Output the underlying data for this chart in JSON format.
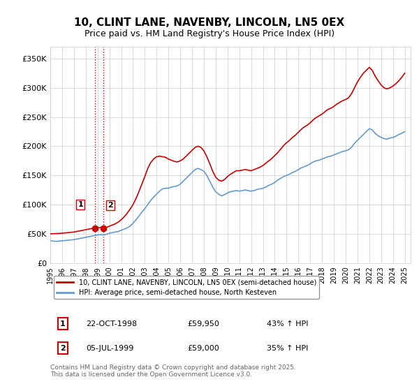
{
  "title": "10, CLINT LANE, NAVENBY, LINCOLN, LN5 0EX",
  "subtitle": "Price paid vs. HM Land Registry's House Price Index (HPI)",
  "title_fontsize": 11,
  "subtitle_fontsize": 9,
  "background_color": "#ffffff",
  "grid_color": "#cccccc",
  "ylabel_ticks": [
    "£0",
    "£50K",
    "£100K",
    "£150K",
    "£200K",
    "£250K",
    "£300K",
    "£350K"
  ],
  "ytick_values": [
    0,
    50000,
    100000,
    150000,
    200000,
    250000,
    300000,
    350000
  ],
  "ylim": [
    0,
    370000
  ],
  "xlim_start": 1995.0,
  "xlim_end": 2025.5,
  "xtick_years": [
    1995,
    1996,
    1997,
    1998,
    1999,
    2000,
    2001,
    2002,
    2003,
    2004,
    2005,
    2006,
    2007,
    2008,
    2009,
    2010,
    2011,
    2012,
    2013,
    2014,
    2015,
    2016,
    2017,
    2018,
    2019,
    2020,
    2021,
    2022,
    2023,
    2024,
    2025
  ],
  "red_line_color": "#cc0000",
  "blue_line_color": "#6699cc",
  "marker_color": "#cc0000",
  "vline_color": "#cc0000",
  "sale1_x": 1998.81,
  "sale1_y": 59950,
  "sale1_label": "1",
  "sale2_x": 1999.51,
  "sale2_y": 59000,
  "sale2_label": "2",
  "legend_label_red": "10, CLINT LANE, NAVENBY, LINCOLN, LN5 0EX (semi-detached house)",
  "legend_label_blue": "HPI: Average price, semi-detached house, North Kesteven",
  "table_rows": [
    [
      "1",
      "22-OCT-1998",
      "£59,950",
      "43% ↑ HPI"
    ],
    [
      "2",
      "05-JUL-1999",
      "£59,000",
      "35% ↑ HPI"
    ]
  ],
  "footer_text": "Contains HM Land Registry data © Crown copyright and database right 2025.\nThis data is licensed under the Open Government Licence v3.0.",
  "hpi_data_x": [
    1995.0,
    1995.25,
    1995.5,
    1995.75,
    1996.0,
    1996.25,
    1996.5,
    1996.75,
    1997.0,
    1997.25,
    1997.5,
    1997.75,
    1998.0,
    1998.25,
    1998.5,
    1998.75,
    1999.0,
    1999.25,
    1999.5,
    1999.75,
    2000.0,
    2000.25,
    2000.5,
    2000.75,
    2001.0,
    2001.25,
    2001.5,
    2001.75,
    2002.0,
    2002.25,
    2002.5,
    2002.75,
    2003.0,
    2003.25,
    2003.5,
    2003.75,
    2004.0,
    2004.25,
    2004.5,
    2004.75,
    2005.0,
    2005.25,
    2005.5,
    2005.75,
    2006.0,
    2006.25,
    2006.5,
    2006.75,
    2007.0,
    2007.25,
    2007.5,
    2007.75,
    2008.0,
    2008.25,
    2008.5,
    2008.75,
    2009.0,
    2009.25,
    2009.5,
    2009.75,
    2010.0,
    2010.25,
    2010.5,
    2010.75,
    2011.0,
    2011.25,
    2011.5,
    2011.75,
    2012.0,
    2012.25,
    2012.5,
    2012.75,
    2013.0,
    2013.25,
    2013.5,
    2013.75,
    2014.0,
    2014.25,
    2014.5,
    2014.75,
    2015.0,
    2015.25,
    2015.5,
    2015.75,
    2016.0,
    2016.25,
    2016.5,
    2016.75,
    2017.0,
    2017.25,
    2017.5,
    2017.75,
    2018.0,
    2018.25,
    2018.5,
    2018.75,
    2019.0,
    2019.25,
    2019.5,
    2019.75,
    2020.0,
    2020.25,
    2020.5,
    2020.75,
    2021.0,
    2021.25,
    2021.5,
    2021.75,
    2022.0,
    2022.25,
    2022.5,
    2022.75,
    2023.0,
    2023.25,
    2023.5,
    2023.75,
    2024.0,
    2024.25,
    2024.5,
    2024.75,
    2025.0
  ],
  "hpi_data_y": [
    38000,
    37500,
    37000,
    37500,
    38000,
    38500,
    39000,
    39500,
    40000,
    41000,
    42000,
    43000,
    44000,
    45000,
    46000,
    47000,
    48000,
    48500,
    48000,
    49000,
    51000,
    52000,
    53000,
    54000,
    56000,
    58000,
    60000,
    63000,
    68000,
    74000,
    80000,
    87000,
    93000,
    100000,
    107000,
    113000,
    118000,
    123000,
    127000,
    128000,
    128000,
    130000,
    131000,
    132000,
    135000,
    140000,
    145000,
    150000,
    155000,
    160000,
    162000,
    160000,
    157000,
    150000,
    140000,
    130000,
    122000,
    118000,
    115000,
    117000,
    120000,
    122000,
    123000,
    124000,
    123000,
    124000,
    125000,
    124000,
    123000,
    124000,
    126000,
    127000,
    128000,
    130000,
    133000,
    135000,
    138000,
    142000,
    145000,
    148000,
    150000,
    152000,
    155000,
    157000,
    160000,
    163000,
    165000,
    167000,
    170000,
    173000,
    175000,
    176000,
    178000,
    180000,
    182000,
    183000,
    185000,
    187000,
    189000,
    191000,
    192000,
    194000,
    198000,
    205000,
    210000,
    215000,
    220000,
    225000,
    230000,
    228000,
    222000,
    218000,
    215000,
    213000,
    212000,
    214000,
    215000,
    217000,
    220000,
    222000,
    225000
  ],
  "price_data_x": [
    1995.0,
    1995.25,
    1995.5,
    1995.75,
    1996.0,
    1996.25,
    1996.5,
    1996.75,
    1997.0,
    1997.25,
    1997.5,
    1997.75,
    1998.0,
    1998.25,
    1998.5,
    1998.75,
    1999.0,
    1999.25,
    1999.5,
    1999.75,
    2000.0,
    2000.25,
    2000.5,
    2000.75,
    2001.0,
    2001.25,
    2001.5,
    2001.75,
    2002.0,
    2002.25,
    2002.5,
    2002.75,
    2003.0,
    2003.25,
    2003.5,
    2003.75,
    2004.0,
    2004.25,
    2004.5,
    2004.75,
    2005.0,
    2005.25,
    2005.5,
    2005.75,
    2006.0,
    2006.25,
    2006.5,
    2006.75,
    2007.0,
    2007.25,
    2007.5,
    2007.75,
    2008.0,
    2008.25,
    2008.5,
    2008.75,
    2009.0,
    2009.25,
    2009.5,
    2009.75,
    2010.0,
    2010.25,
    2010.5,
    2010.75,
    2011.0,
    2011.25,
    2011.5,
    2011.75,
    2012.0,
    2012.25,
    2012.5,
    2012.75,
    2013.0,
    2013.25,
    2013.5,
    2013.75,
    2014.0,
    2014.25,
    2014.5,
    2014.75,
    2015.0,
    2015.25,
    2015.5,
    2015.75,
    2016.0,
    2016.25,
    2016.5,
    2016.75,
    2017.0,
    2017.25,
    2017.5,
    2017.75,
    2018.0,
    2018.25,
    2018.5,
    2018.75,
    2019.0,
    2019.25,
    2019.5,
    2019.75,
    2020.0,
    2020.25,
    2020.5,
    2020.75,
    2021.0,
    2021.25,
    2021.5,
    2021.75,
    2022.0,
    2022.25,
    2022.5,
    2022.75,
    2023.0,
    2023.25,
    2023.5,
    2023.75,
    2024.0,
    2024.25,
    2024.5,
    2024.75,
    2025.0
  ],
  "price_data_y": [
    50000,
    50200,
    50400,
    50600,
    51000,
    51500,
    52000,
    52500,
    53000,
    54000,
    55000,
    56000,
    57000,
    58000,
    59000,
    59950,
    60500,
    61000,
    59000,
    61000,
    63000,
    65000,
    67000,
    70000,
    74000,
    79000,
    85000,
    92000,
    100000,
    110000,
    122000,
    135000,
    148000,
    162000,
    172000,
    178000,
    182000,
    183000,
    182000,
    181000,
    178000,
    176000,
    174000,
    173000,
    175000,
    178000,
    183000,
    188000,
    193000,
    198000,
    200000,
    198000,
    192000,
    182000,
    170000,
    157000,
    147000,
    142000,
    140000,
    143000,
    148000,
    152000,
    155000,
    158000,
    158000,
    159000,
    160000,
    159000,
    158000,
    160000,
    162000,
    164000,
    167000,
    171000,
    175000,
    179000,
    184000,
    189000,
    195000,
    201000,
    206000,
    210000,
    215000,
    219000,
    224000,
    229000,
    233000,
    236000,
    240000,
    245000,
    249000,
    252000,
    255000,
    259000,
    263000,
    265000,
    268000,
    272000,
    275000,
    278000,
    280000,
    283000,
    290000,
    300000,
    310000,
    318000,
    325000,
    330000,
    335000,
    330000,
    320000,
    312000,
    305000,
    300000,
    298000,
    300000,
    303000,
    307000,
    312000,
    318000,
    325000
  ]
}
